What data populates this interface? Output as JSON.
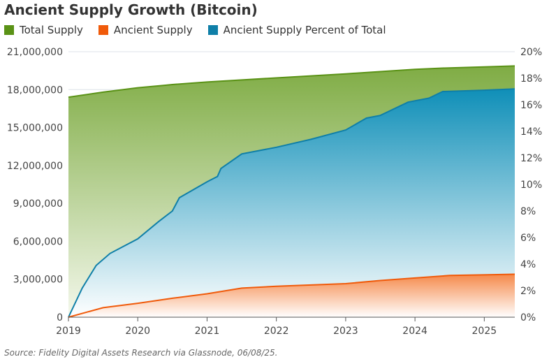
{
  "chart_data": {
    "type": "area",
    "title": "Ancient Supply Growth (Bitcoin)",
    "source": "Source: Fidelity Digital Assets Research via Glassnode, 06/08/25.",
    "x_ticks": [
      "2019",
      "2020",
      "2021",
      "2022",
      "2023",
      "2024",
      "2025"
    ],
    "xlim": [
      2019,
      2025.44
    ],
    "y_left": {
      "ylim": [
        0,
        21000000
      ],
      "ticks": [
        "0",
        "3,000,000",
        "6,000,000",
        "9,000,000",
        "12,000,000",
        "15,000,000",
        "18,000,000",
        "21,000,000"
      ]
    },
    "y_right": {
      "ylim": [
        0,
        20
      ],
      "ticks": [
        "0%",
        "2%",
        "4%",
        "6%",
        "8%",
        "10%",
        "12%",
        "14%",
        "16%",
        "18%",
        "20%"
      ]
    },
    "grid": true,
    "legend_placement": "top-left",
    "series": [
      {
        "name": "Total Supply",
        "axis": "left",
        "color": "#5a9216",
        "x": [
          2019,
          2019.5,
          2020,
          2020.4,
          2020.5,
          2021,
          2022,
          2023,
          2024,
          2024.4,
          2025,
          2025.44
        ],
        "y": [
          17400000,
          17800000,
          18150000,
          18350000,
          18400000,
          18600000,
          18930000,
          19250000,
          19600000,
          19700000,
          19800000,
          19870000
        ]
      },
      {
        "name": "Ancient Supply",
        "axis": "left",
        "color": "#f05a0a",
        "x": [
          2019,
          2019.5,
          2020,
          2020.5,
          2021,
          2021.5,
          2022,
          2023,
          2023.5,
          2024,
          2024.5,
          2025,
          2025.44
        ],
        "y": [
          0,
          750000,
          1100000,
          1500000,
          1850000,
          2300000,
          2450000,
          2650000,
          2900000,
          3100000,
          3300000,
          3350000,
          3400000
        ]
      },
      {
        "name": "Ancient Supply Percent of Total",
        "axis": "right",
        "color": "#0f7fa8",
        "x": [
          2019,
          2019.2,
          2019.4,
          2019.6,
          2020,
          2020.3,
          2020.5,
          2020.6,
          2021,
          2021.15,
          2021.2,
          2021.5,
          2022,
          2022.5,
          2023,
          2023.3,
          2023.5,
          2023.9,
          2024.2,
          2024.4,
          2025,
          2025.44
        ],
        "y": [
          0,
          2.2,
          3.9,
          4.8,
          5.9,
          7.2,
          8.0,
          9.0,
          10.2,
          10.6,
          11.2,
          12.3,
          12.8,
          13.4,
          14.1,
          15.0,
          15.2,
          16.2,
          16.5,
          17.0,
          17.1,
          17.2
        ]
      }
    ]
  }
}
